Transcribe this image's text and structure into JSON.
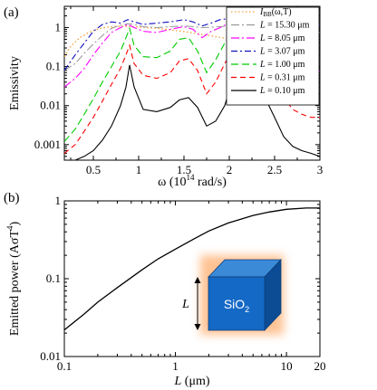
{
  "chart_data": [
    {
      "panel_label": "(a)",
      "type": "line",
      "xlabel": "ω (10",
      "xlabel_exp": "14",
      "xlabel_unit": " rad/s)",
      "ylabel": "Emissivity",
      "xlim": [
        0.18,
        3.0
      ],
      "ylim": [
        0.0004,
        3.5
      ],
      "yscale": "log",
      "x_ticks": [
        0.5,
        1,
        1.5,
        2,
        2.5,
        3
      ],
      "x_tick_labels": [
        "0.5",
        "1",
        "1.5",
        "2",
        "2.5",
        "3"
      ],
      "y_ticks": [
        0.001,
        0.01,
        0.1,
        1
      ],
      "y_tick_labels": [
        "0.001",
        "0.01",
        "0.1",
        "1"
      ],
      "legend_position": "top-right",
      "series": [
        {
          "name": "I_BB(ω,T)",
          "color": "#f4a340",
          "dash": "1.5,2.5",
          "x": [
            0.18,
            0.25,
            0.35,
            0.45,
            0.55,
            0.65,
            0.75,
            0.85,
            0.95,
            1.1,
            1.3,
            1.5,
            1.7,
            1.9,
            2.1,
            2.3,
            2.5,
            2.7,
            2.9,
            3.0
          ],
          "y": [
            0.18,
            0.33,
            0.55,
            0.75,
            0.92,
            1.02,
            1.07,
            1.08,
            1.06,
            1.0,
            0.9,
            0.79,
            0.67,
            0.56,
            0.46,
            0.37,
            0.3,
            0.23,
            0.18,
            0.16
          ]
        },
        {
          "name": "15.30 μm",
          "color": "#9a9a9a",
          "dash": "9,3,2,3",
          "x": [
            0.18,
            0.3,
            0.4,
            0.5,
            0.6,
            0.7,
            0.8,
            0.88,
            0.95,
            1.05,
            1.2,
            1.35,
            1.5,
            1.6,
            1.7,
            1.8,
            1.9,
            2.0,
            2.1,
            2.2,
            2.3,
            2.4,
            2.5,
            2.6,
            2.7,
            2.8,
            3.0
          ],
          "y": [
            0.08,
            0.12,
            0.22,
            0.38,
            0.62,
            0.95,
            1.15,
            1.25,
            1.2,
            1.05,
            1.0,
            1.05,
            1.1,
            1.05,
            1.0,
            1.02,
            1.05,
            1.1,
            1.2,
            1.1,
            1.05,
            1.0,
            0.95,
            0.9,
            0.85,
            0.8,
            0.75
          ]
        },
        {
          "name": "8.05 μm",
          "color": "#ff00ff",
          "dash": "9,3,2,3",
          "x": [
            0.18,
            0.3,
            0.4,
            0.5,
            0.6,
            0.7,
            0.8,
            0.88,
            0.95,
            1.05,
            1.2,
            1.35,
            1.5,
            1.6,
            1.7,
            1.8,
            1.9,
            2.0,
            2.1,
            2.2,
            2.3,
            2.4,
            2.5,
            2.6,
            2.7,
            2.8,
            3.0
          ],
          "y": [
            0.03,
            0.05,
            0.09,
            0.2,
            0.4,
            0.75,
            1.0,
            1.2,
            1.0,
            0.8,
            0.75,
            0.9,
            1.05,
            0.9,
            0.55,
            0.8,
            1.0,
            1.3,
            1.6,
            1.4,
            1.35,
            1.1,
            0.65,
            0.3,
            0.15,
            0.1,
            0.075
          ]
        },
        {
          "name": "3.07 μm",
          "color": "#1010c0",
          "dash": "7,3,2,3",
          "x": [
            0.18,
            0.3,
            0.4,
            0.5,
            0.6,
            0.7,
            0.8,
            0.88,
            0.95,
            1.05,
            1.2,
            1.35,
            1.5,
            1.6,
            1.7,
            1.8,
            1.9,
            2.0,
            2.1,
            2.2,
            2.3,
            2.4,
            2.5,
            2.6,
            2.7,
            2.8,
            3.0
          ],
          "y": [
            0.08,
            0.2,
            0.4,
            0.8,
            1.2,
            1.4,
            1.3,
            1.6,
            1.4,
            1.2,
            1.3,
            1.4,
            1.6,
            1.4,
            1.1,
            1.3,
            1.6,
            1.7,
            1.8,
            1.7,
            1.55,
            1.45,
            1.35,
            1.3,
            1.25,
            1.2,
            1.2
          ]
        },
        {
          "name": "1.00 μm",
          "color": "#00cc00",
          "dash": "8,4",
          "x": [
            0.18,
            0.3,
            0.4,
            0.5,
            0.6,
            0.7,
            0.8,
            0.86,
            0.9,
            0.95,
            1.05,
            1.2,
            1.35,
            1.45,
            1.55,
            1.65,
            1.75,
            1.85,
            1.95,
            2.05,
            2.12,
            2.2,
            2.3,
            2.4,
            2.5,
            2.6,
            2.7,
            2.8,
            2.9,
            3.0
          ],
          "y": [
            0.0012,
            0.0025,
            0.006,
            0.015,
            0.04,
            0.1,
            0.25,
            0.55,
            0.95,
            0.35,
            0.18,
            0.17,
            0.25,
            0.5,
            0.55,
            0.25,
            0.07,
            0.15,
            0.4,
            1.0,
            3.0,
            1.5,
            0.9,
            0.55,
            0.22,
            0.07,
            0.03,
            0.02,
            0.016,
            0.015
          ]
        },
        {
          "name": "0.31 μm",
          "color": "#ff0000",
          "dash": "6,4",
          "x": [
            0.18,
            0.3,
            0.4,
            0.5,
            0.6,
            0.7,
            0.8,
            0.86,
            0.9,
            0.95,
            1.05,
            1.2,
            1.35,
            1.45,
            1.55,
            1.65,
            1.75,
            1.85,
            1.95,
            2.05,
            2.12,
            2.2,
            2.3,
            2.4,
            2.5,
            2.6,
            2.7,
            2.8,
            2.9,
            3.0
          ],
          "y": [
            0.0006,
            0.001,
            0.0022,
            0.005,
            0.013,
            0.035,
            0.09,
            0.2,
            0.35,
            0.12,
            0.06,
            0.05,
            0.07,
            0.14,
            0.16,
            0.08,
            0.02,
            0.04,
            0.12,
            0.3,
            0.7,
            0.4,
            0.22,
            0.12,
            0.05,
            0.016,
            0.008,
            0.006,
            0.005,
            0.005
          ]
        },
        {
          "name": "0.10 μm",
          "color": "#000000",
          "dash": "",
          "x": [
            0.18,
            0.3,
            0.4,
            0.5,
            0.6,
            0.7,
            0.8,
            0.86,
            0.9,
            0.95,
            1.05,
            1.2,
            1.35,
            1.45,
            1.55,
            1.65,
            1.75,
            1.85,
            1.95,
            2.05,
            2.12,
            2.2,
            2.3,
            2.4,
            2.5,
            2.6,
            2.7,
            2.8,
            2.9,
            3.0
          ],
          "y": [
            0.0004,
            0.0004,
            0.0005,
            0.0007,
            0.0013,
            0.003,
            0.01,
            0.03,
            0.11,
            0.03,
            0.008,
            0.007,
            0.009,
            0.014,
            0.016,
            0.009,
            0.003,
            0.004,
            0.01,
            0.06,
            0.35,
            0.12,
            0.04,
            0.015,
            0.005,
            0.0016,
            0.0009,
            0.0007,
            0.0006,
            0.0005
          ]
        }
      ],
      "legend": [
        {
          "prefix": "I",
          "subscript": "BB",
          "rest": "(ω,T)",
          "italic_prefix": true
        },
        {
          "prefix": "L",
          "rest": " = 15.30 μm"
        },
        {
          "prefix": "L",
          "rest": " = 8.05 μm"
        },
        {
          "prefix": "L",
          "rest": " = 3.07 μm"
        },
        {
          "prefix": "L",
          "rest": " = 1.00 μm"
        },
        {
          "prefix": "L",
          "rest": " = 0.31 μm"
        },
        {
          "prefix": "L",
          "rest": " = 0.10 μm"
        }
      ]
    },
    {
      "panel_label": "(b)",
      "type": "line",
      "xlabel": "L",
      "xlabel_unit": " (μm)",
      "ylabel": "Emitted power (AσT",
      "ylabel_exp": "4",
      "ylabel_end": ")",
      "xscale": "log",
      "yscale": "log",
      "xlim": [
        0.1,
        20
      ],
      "ylim": [
        0.01,
        1
      ],
      "x_ticks": [
        0.1,
        1,
        10,
        20
      ],
      "x_tick_labels": [
        "0.1",
        "1",
        "10",
        "20"
      ],
      "y_ticks": [
        0.01,
        0.1,
        1
      ],
      "y_tick_labels": [
        "0.01",
        "0.1",
        "1"
      ],
      "series": [
        {
          "color": "#000000",
          "x": [
            0.1,
            0.15,
            0.2,
            0.3,
            0.5,
            0.7,
            1,
            1.5,
            2,
            3,
            5,
            7,
            10,
            15,
            20
          ],
          "y": [
            0.022,
            0.035,
            0.05,
            0.077,
            0.13,
            0.18,
            0.24,
            0.33,
            0.41,
            0.52,
            0.65,
            0.72,
            0.78,
            0.81,
            0.81
          ]
        }
      ],
      "inset": {
        "dimension_label": "L",
        "material": "SiO",
        "material_sub": "2"
      }
    }
  ]
}
